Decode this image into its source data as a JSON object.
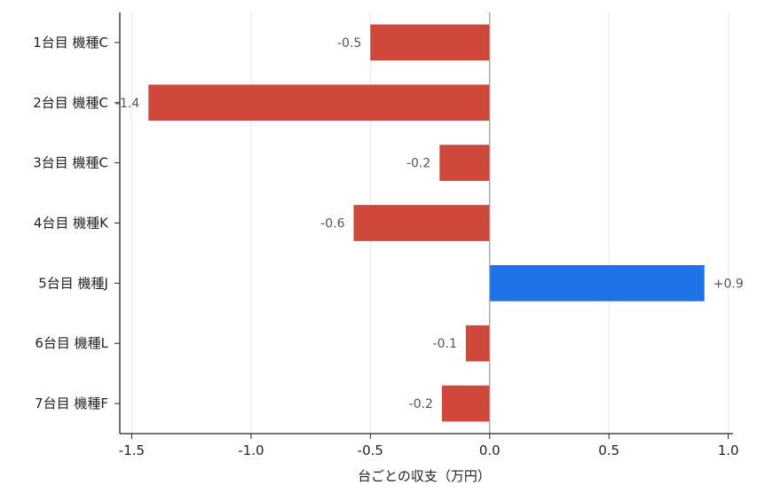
{
  "chart_data": {
    "type": "bar",
    "orientation": "horizontal",
    "categories": [
      "1台目 機種C",
      "2台目 機種C",
      "3台目 機種C",
      "4台目 機種K",
      "5台目 機種J",
      "6台目 機種L",
      "7台目 機種F"
    ],
    "values": [
      -0.5,
      -1.43,
      -0.21,
      -0.57,
      0.9,
      -0.1,
      -0.2
    ],
    "data_labels": [
      "-0.5",
      "-1.4",
      "-0.2",
      "-0.6",
      "+0.9",
      "-0.1",
      "-0.2"
    ],
    "xlabel": "台ごとの収支（万円）",
    "ylabel": "",
    "xlim": [
      -1.55,
      1.02
    ],
    "xticks": [
      -1.5,
      -1.0,
      -0.5,
      0.0,
      0.5,
      1.0
    ],
    "xtick_labels": [
      "-1.5",
      "-1.0",
      "-0.5",
      "0.0",
      "0.5",
      "1.0"
    ],
    "grid": "vertical",
    "colors": {
      "negative": "#d0473b",
      "positive": "#1f72e8",
      "grid": "#ebebeb",
      "zero_line": "#999999",
      "axis": "#222222"
    }
  }
}
